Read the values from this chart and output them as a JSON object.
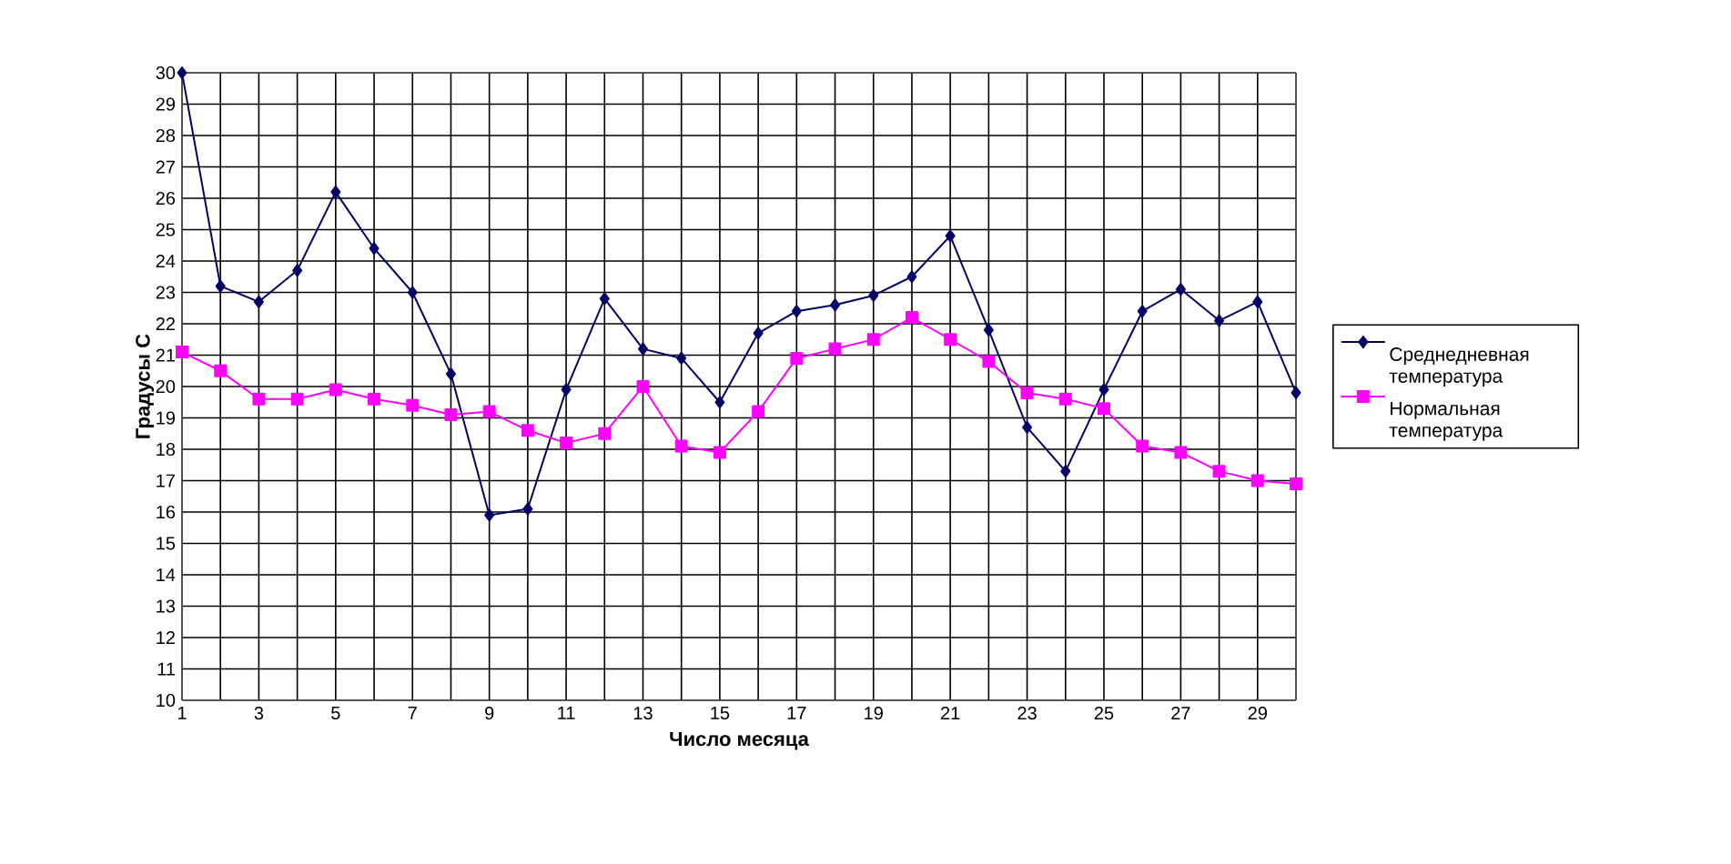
{
  "chart_data": {
    "type": "line",
    "xlabel": "Число месяца",
    "ylabel": "Градусы С",
    "x": [
      1,
      2,
      3,
      4,
      5,
      6,
      7,
      8,
      9,
      10,
      11,
      12,
      13,
      14,
      15,
      16,
      17,
      18,
      19,
      20,
      21,
      22,
      23,
      24,
      25,
      26,
      27,
      28,
      29,
      30
    ],
    "series": [
      {
        "name": "Среднедневная температура",
        "color": "#000066",
        "marker": "diamond",
        "values": [
          30,
          23.2,
          22.7,
          23.7,
          26.2,
          24.4,
          23.0,
          20.4,
          15.9,
          16.1,
          19.9,
          22.8,
          21.2,
          20.9,
          19.5,
          21.7,
          22.4,
          22.6,
          22.9,
          23.5,
          24.8,
          21.8,
          18.7,
          17.3,
          19.9,
          22.4,
          23.1,
          22.1,
          22.7,
          19.8
        ]
      },
      {
        "name": "Нормальная температура",
        "color": "#ff00ff",
        "marker": "square",
        "values": [
          21.1,
          20.5,
          19.6,
          19.6,
          19.9,
          19.6,
          19.4,
          19.1,
          19.2,
          18.6,
          18.2,
          18.5,
          20.0,
          18.1,
          17.9,
          19.2,
          20.9,
          21.2,
          21.5,
          22.2,
          21.5,
          20.8,
          19.8,
          19.6,
          19.3,
          18.1,
          17.9,
          17.3,
          17.0,
          16.9
        ]
      }
    ],
    "xlim": [
      1,
      30
    ],
    "xticks": [
      1,
      {
        "value": 2,
        "label": null
      },
      3,
      {
        "value": 4,
        "label": null
      },
      5,
      {
        "value": 6,
        "label": null
      },
      7,
      {
        "value": 8,
        "label": null
      },
      9,
      {
        "value": 10,
        "label": null
      },
      11,
      {
        "value": 12,
        "label": null
      },
      13,
      {
        "value": 14,
        "label": null
      },
      15,
      {
        "value": 16,
        "label": null
      },
      17,
      {
        "value": 18,
        "label": null
      },
      19,
      {
        "value": 20,
        "label": null
      },
      21,
      {
        "value": 22,
        "label": null
      },
      23,
      {
        "value": 24,
        "label": null
      },
      25,
      {
        "value": 26,
        "label": null
      },
      27,
      {
        "value": 28,
        "label": null
      },
      29,
      {
        "value": 30,
        "label": null
      }
    ],
    "ylim": [
      10,
      30
    ],
    "yticks": [
      10,
      11,
      12,
      13,
      14,
      15,
      16,
      17,
      18,
      19,
      20,
      21,
      22,
      23,
      24,
      25,
      26,
      27,
      28,
      29,
      30
    ],
    "grid": true,
    "legend": "right",
    "line_style": "solid"
  }
}
